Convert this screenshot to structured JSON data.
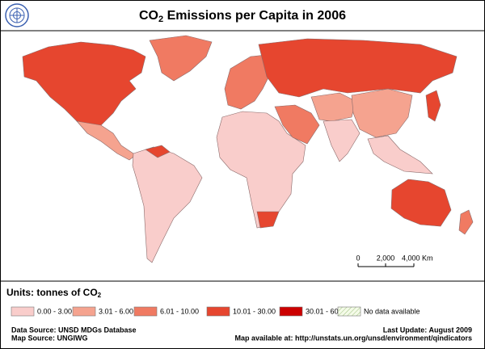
{
  "header": {
    "title": {
      "parts": [
        "CO",
        "2",
        " Emissions per Capita in 2006"
      ]
    }
  },
  "legend": {
    "title_parts": [
      "Units: tonnes of CO",
      "2"
    ],
    "items": [
      {
        "label": "0.00 - 3.00",
        "color": "#f9cdcb"
      },
      {
        "label": "3.01 - 6.00",
        "color": "#f5a38f"
      },
      {
        "label": "6.01 - 10.00",
        "color": "#f07a62"
      },
      {
        "label": "10.01 - 30.00",
        "color": "#e6462f"
      },
      {
        "label": "30.01 - 60.00",
        "color": "#cc0000"
      },
      {
        "label": "No data available"
      }
    ]
  },
  "scale_bar": {
    "labels": [
      "0",
      "2,000",
      "4,000 Km"
    ]
  },
  "footer": {
    "data_source": "Data Source: UNSD MDGs Database",
    "map_source": "Map Source: UNGIWG",
    "last_update": "Last Update: August 2009",
    "map_url": "Map available at: http://unstats.un.org/unsd/environment/qindicators"
  }
}
